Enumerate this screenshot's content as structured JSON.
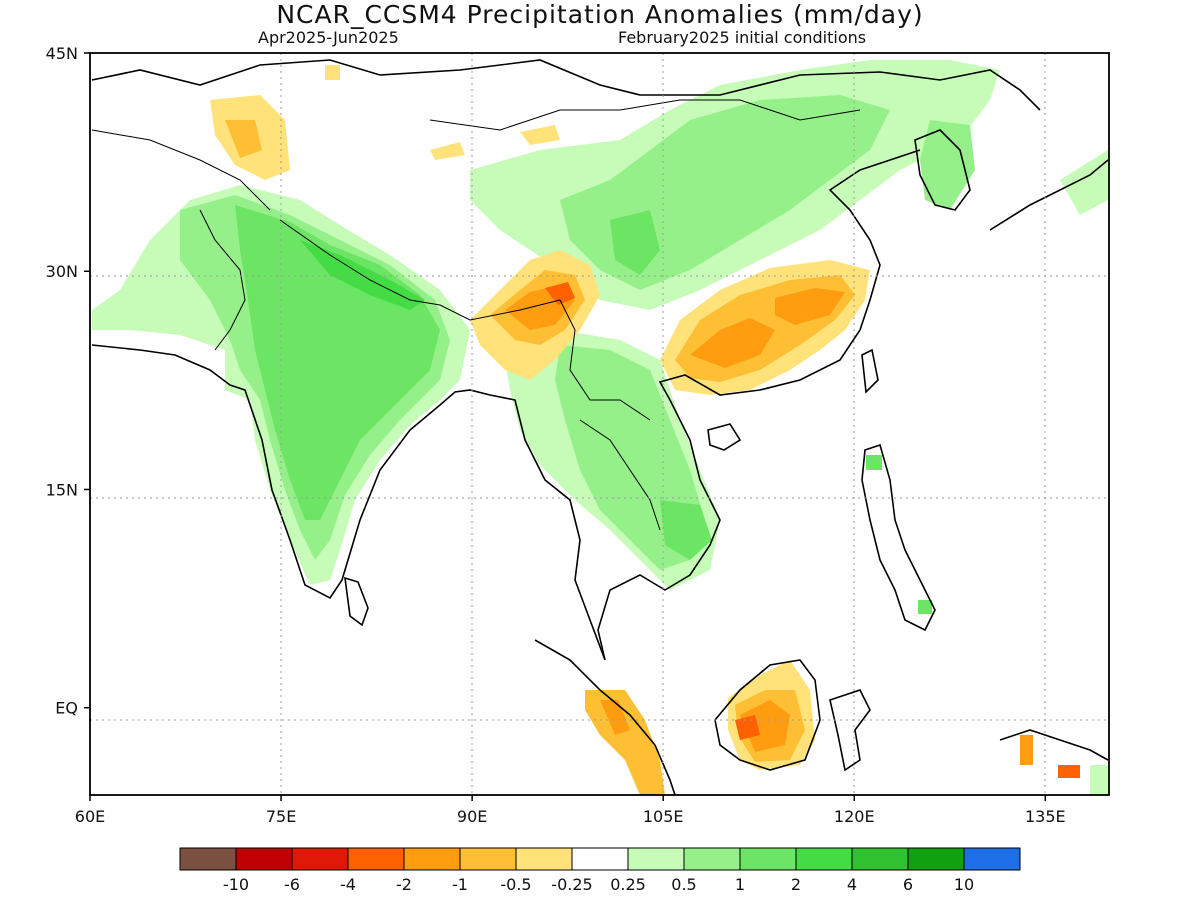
{
  "title": "NCAR_CCSM4 Precipitation Anomalies (mm/day)",
  "subtitle_left": "Apr2025-Jun2025",
  "subtitle_right": "February2025 initial conditions",
  "map": {
    "lon_range": [
      60,
      140
    ],
    "lat_range": [
      -6,
      45
    ],
    "lon_ticks": [
      {
        "value": 60,
        "label": "60E"
      },
      {
        "value": 75,
        "label": "75E"
      },
      {
        "value": 90,
        "label": "90E"
      },
      {
        "value": 105,
        "label": "105E"
      },
      {
        "value": 120,
        "label": "120E"
      },
      {
        "value": 135,
        "label": "135E"
      }
    ],
    "lat_ticks": [
      {
        "value": 45,
        "label": "45N"
      },
      {
        "value": 30,
        "label": "30N"
      },
      {
        "value": 15,
        "label": "15N"
      },
      {
        "value": 0,
        "label": "EQ"
      }
    ],
    "gridlines": "dotted"
  },
  "colorbar": {
    "colors": [
      "#7a5040",
      "#c00000",
      "#e01808",
      "#ff6000",
      "#ff9c10",
      "#ffbf35",
      "#ffe27a",
      "#ffffff",
      "#c6fcb8",
      "#96f08a",
      "#6ce464",
      "#44dc44",
      "#30c030",
      "#10a010",
      "#1e6ee8"
    ],
    "labels": [
      "-10",
      "-6",
      "-4",
      "-2",
      "-1",
      "-0.5",
      "-0.25",
      "0.25",
      "0.5",
      "1",
      "2",
      "4",
      "6",
      "10"
    ]
  },
  "colors": {
    "wet_light": "#c6fcb8",
    "wet_mid": "#96f08a",
    "wet_strong": "#6ce464",
    "wet_stronger": "#44dc44",
    "dry_light": "#ffe27a",
    "dry_mid": "#ffbf35",
    "dry_strong": "#ff9c10",
    "dry_stronger": "#ff6000"
  }
}
